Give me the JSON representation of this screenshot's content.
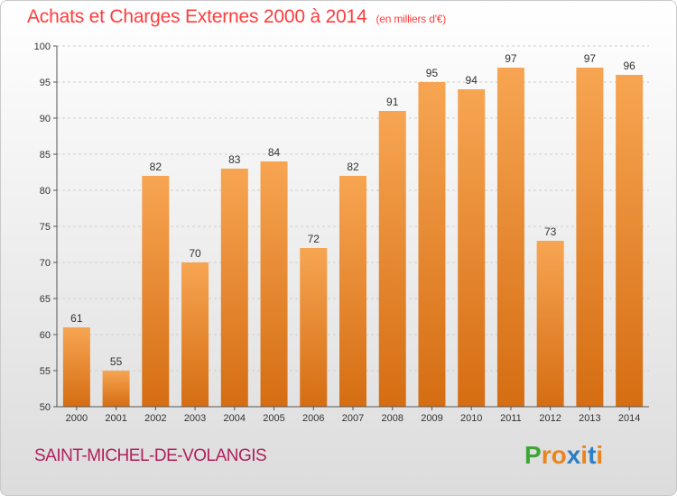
{
  "header": {
    "title": "Achats et Charges Externes 2000 à 2014",
    "subtitle": "(en milliers d'€)"
  },
  "footer": {
    "city": "SAINT-MICHEL-DE-VOLANGIS",
    "logo": [
      "P",
      "r",
      "o",
      "x",
      "i",
      "t",
      "i"
    ]
  },
  "colors": {
    "title": "#ff3c3c",
    "city": "#b01f5c",
    "bar_top": "#f7a552",
    "bar_bottom": "#d56d12",
    "logo": [
      "#3fa535",
      "#e8851e",
      "#e8851e",
      "#2d7ec4",
      "#e8851e",
      "#2d7ec4",
      "#e8851e"
    ]
  },
  "chart_data": {
    "type": "bar",
    "categories": [
      "2000",
      "2001",
      "2002",
      "2003",
      "2004",
      "2005",
      "2006",
      "2007",
      "2008",
      "2009",
      "2010",
      "2011",
      "2012",
      "2013",
      "2014"
    ],
    "values": [
      61,
      55,
      82,
      70,
      83,
      84,
      72,
      82,
      91,
      95,
      94,
      97,
      73,
      97,
      96
    ],
    "title": "Achats et Charges Externes 2000 à 2014",
    "ylim": [
      50,
      100
    ],
    "yticks": [
      50,
      55,
      60,
      65,
      70,
      75,
      80,
      85,
      90,
      95,
      100
    ],
    "grid": true
  }
}
